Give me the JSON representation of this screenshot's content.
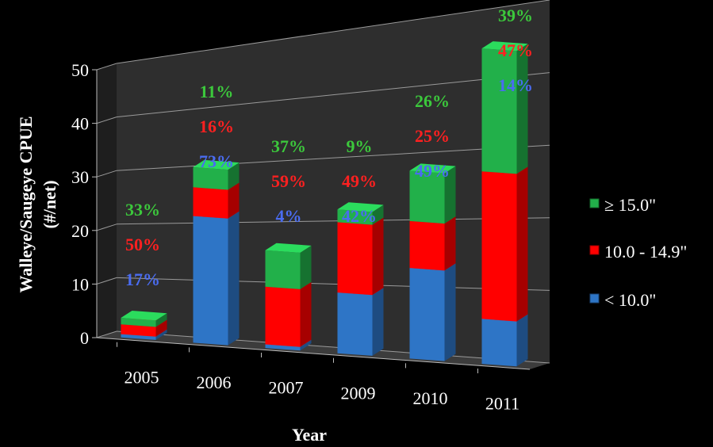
{
  "chart_data": {
    "type": "bar",
    "stacked": true,
    "three_d": true,
    "xlabel": "Year",
    "ylabel": "Walleye/Saugeye CPUE",
    "ylabel_line2": "(#/net)",
    "ylim": [
      0,
      50
    ],
    "yticks": [
      "0",
      "10",
      "20",
      "30",
      "40",
      "50"
    ],
    "grid": true,
    "legend_position": "right",
    "categories": [
      "2005",
      "2006",
      "2007",
      "2009",
      "2010",
      "2011"
    ],
    "series": [
      {
        "name": "< 10.0\"",
        "color": "#2e75c6",
        "values": [
          0.6,
          22,
          0.6,
          9.5,
          13.5,
          6.4
        ],
        "labels": [
          "17%",
          "73%",
          "4%",
          "42%",
          "49%",
          "14%"
        ],
        "label_color": "#4a6cf0"
      },
      {
        "name": "10.0 - 14.9\"",
        "color": "#ff0000",
        "values": [
          1.8,
          5,
          9.5,
          11,
          7,
          21
        ],
        "labels": [
          "50%",
          "16%",
          "59%",
          "49%",
          "25%",
          "47%"
        ],
        "label_color": "#ff2020"
      },
      {
        "name": "≥ 15.0\"",
        "color": "#22b04a",
        "values": [
          1.2,
          3.5,
          6,
          2,
          7.5,
          17.5
        ],
        "labels": [
          "33%",
          "11%",
          "37%",
          "9%",
          "26%",
          "39%"
        ],
        "label_color": "#3cc83c"
      }
    ]
  }
}
